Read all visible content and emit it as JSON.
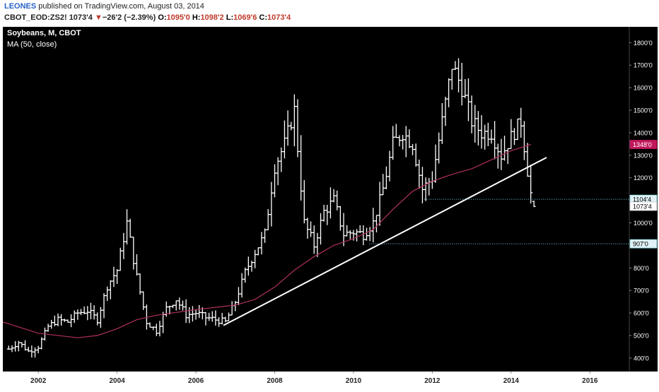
{
  "header": {
    "author": "LEONES",
    "published_text": " published on TradingView.com, August 03, 2014",
    "symbol": "CBOT_EOD:ZS2!",
    "last": "1073'4",
    "change_arrow": "▼",
    "change": "−26'2 (−2.39%)",
    "open_label": "O:",
    "open": "1095'0",
    "high_label": "H:",
    "high": "1098'2",
    "low_label": "L:",
    "low": "1069'6",
    "close_label": "C:",
    "close": "1073'4"
  },
  "legend": {
    "title": "Soybeans, M, CBOT",
    "indicator": "MA (50, close)"
  },
  "colors": {
    "background": "#000000",
    "bars": "#ffffff",
    "ma": "#b03060",
    "trendline": "#ffffff",
    "hline": "#7fd4e0",
    "ma_label_bg": "#c2185b",
    "price_label_bg": "#e0f2f5"
  },
  "chart_data": {
    "type": "bar",
    "subtype": "ohlc-monthly",
    "title": "Soybeans, M, CBOT",
    "x_ticks": [
      "2002",
      "2004",
      "2006",
      "2008",
      "2010",
      "2012",
      "2014",
      "2016"
    ],
    "y_ticks": [
      "400'0",
      "500'0",
      "600'0",
      "700'0",
      "800'0",
      "900'0",
      "1000'0",
      "1100'0",
      "1200'0",
      "1300'0",
      "1400'0",
      "1500'0",
      "1600'0",
      "1700'0",
      "1800'0"
    ],
    "ylim": [
      340,
      1870
    ],
    "xlim": [
      2001.1,
      2017.0
    ],
    "series": [
      {
        "name": "Soybeans monthly close",
        "x": [
          2001.25,
          2001.5,
          2001.75,
          2002.0,
          2002.25,
          2002.5,
          2002.75,
          2003.0,
          2003.25,
          2003.5,
          2003.75,
          2004.0,
          2004.25,
          2004.5,
          2004.75,
          2005.0,
          2005.25,
          2005.5,
          2005.75,
          2006.0,
          2006.25,
          2006.5,
          2006.75,
          2007.0,
          2007.25,
          2007.5,
          2007.75,
          2008.0,
          2008.25,
          2008.5,
          2008.75,
          2009.0,
          2009.25,
          2009.5,
          2009.75,
          2010.0,
          2010.25,
          2010.5,
          2010.75,
          2011.0,
          2011.25,
          2011.5,
          2011.75,
          2012.0,
          2012.25,
          2012.5,
          2012.75,
          2013.0,
          2013.25,
          2013.5,
          2013.75,
          2014.0,
          2014.25,
          2014.5,
          2014.58
        ],
        "values": [
          440,
          470,
          430,
          450,
          540,
          570,
          560,
          600,
          610,
          570,
          720,
          790,
          1000,
          760,
          560,
          520,
          620,
          660,
          590,
          600,
          580,
          570,
          560,
          650,
          780,
          870,
          950,
          1250,
          1350,
          1500,
          1000,
          900,
          1050,
          1100,
          950,
          960,
          950,
          1000,
          1150,
          1350,
          1400,
          1350,
          1150,
          1200,
          1450,
          1700,
          1600,
          1450,
          1400,
          1400,
          1300,
          1380,
          1450,
          1130,
          1073
        ]
      },
      {
        "name": "MA (50, close)",
        "x": [
          2001.1,
          2002.0,
          2003.0,
          2003.5,
          2004.0,
          2004.5,
          2005.0,
          2006.0,
          2007.0,
          2007.5,
          2008.0,
          2008.5,
          2009.0,
          2009.5,
          2010.0,
          2010.5,
          2011.0,
          2011.5,
          2012.0,
          2012.5,
          2013.0,
          2013.5,
          2014.0,
          2014.5
        ],
        "values": [
          560,
          510,
          490,
          500,
          530,
          570,
          590,
          615,
          635,
          660,
          715,
          790,
          850,
          900,
          930,
          970,
          1060,
          1140,
          1185,
          1215,
          1240,
          1280,
          1320,
          1348
        ]
      }
    ],
    "trendline": {
      "x": [
        2006.7,
        2014.9
      ],
      "y": [
        545,
        1290
      ]
    },
    "horizontal_lines": [
      {
        "label": "1104'4",
        "y": 1104.5,
        "x_start": 2011.8
      },
      {
        "label": "907'0",
        "y": 907,
        "x_start": 2010.4
      }
    ],
    "price_labels": [
      {
        "label": "1348'0",
        "y": 1348,
        "style": "ma"
      },
      {
        "label": "1104'4",
        "y": 1104.5,
        "style": "line"
      },
      {
        "label": "1073'4",
        "y": 1073.5,
        "style": "last"
      },
      {
        "label": "907'0",
        "y": 907,
        "style": "line"
      }
    ],
    "grid": false,
    "legend_position": "top-left"
  }
}
